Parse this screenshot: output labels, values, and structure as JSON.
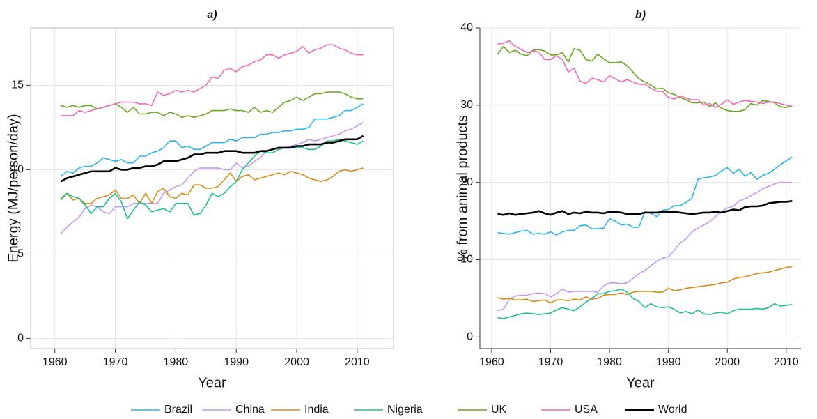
{
  "chart_data": [
    {
      "type": "line",
      "title": "a)",
      "x_label": "Year",
      "y_label": "Energy (MJ/person/day)",
      "x": [
        1961,
        1962,
        1963,
        1964,
        1965,
        1966,
        1967,
        1968,
        1969,
        1970,
        1971,
        1972,
        1973,
        1974,
        1975,
        1976,
        1977,
        1978,
        1979,
        1980,
        1981,
        1982,
        1983,
        1984,
        1985,
        1986,
        1987,
        1988,
        1989,
        1990,
        1991,
        1992,
        1993,
        1994,
        1995,
        1996,
        1997,
        1998,
        1999,
        2000,
        2001,
        2002,
        2003,
        2004,
        2005,
        2006,
        2007,
        2008,
        2009,
        2010,
        2011
      ],
      "xlim": [
        1956,
        2016
      ],
      "xticks": [
        1960,
        1970,
        1980,
        1990,
        2000,
        2010
      ],
      "ylim": [
        -0.6,
        18.4
      ],
      "yticks": [
        0,
        5,
        10,
        15
      ],
      "grid": true,
      "legend": "bottom",
      "series": [
        {
          "name": "Brazil",
          "color": "#29b5e8",
          "values": [
            9.6,
            9.9,
            9.8,
            10.1,
            10.2,
            10.2,
            10.4,
            10.7,
            10.6,
            10.5,
            10.6,
            10.4,
            10.4,
            10.8,
            10.8,
            11.0,
            11.1,
            11.3,
            11.7,
            11.7,
            11.3,
            11.4,
            11.2,
            11.2,
            11.4,
            11.6,
            11.6,
            11.6,
            11.8,
            11.7,
            11.9,
            11.9,
            11.9,
            12.1,
            12.1,
            12.2,
            12.2,
            12.3,
            12.3,
            12.4,
            12.4,
            12.5,
            13.0,
            13.0,
            13.0,
            13.1,
            13.2,
            13.5,
            13.5,
            13.7,
            13.9
          ]
        },
        {
          "name": "China",
          "color": "#c59bf2",
          "values": [
            6.2,
            6.6,
            6.9,
            7.2,
            7.7,
            7.9,
            7.8,
            7.5,
            7.4,
            7.8,
            7.8,
            7.8,
            8.0,
            8.0,
            8.0,
            8.0,
            8.0,
            8.6,
            8.8,
            9.0,
            9.1,
            9.5,
            9.9,
            10.1,
            10.1,
            10.1,
            10.1,
            10.0,
            10.0,
            10.4,
            10.1,
            10.2,
            10.5,
            10.7,
            11.1,
            11.2,
            11.3,
            11.3,
            11.4,
            11.5,
            11.6,
            11.8,
            11.7,
            11.8,
            11.9,
            12.0,
            12.1,
            12.3,
            12.4,
            12.6,
            12.8
          ]
        },
        {
          "name": "India",
          "color": "#d88c1a",
          "values": [
            8.3,
            8.6,
            8.2,
            8.3,
            8.0,
            8.0,
            8.3,
            8.4,
            8.5,
            8.8,
            8.3,
            8.3,
            8.5,
            8.0,
            8.6,
            8.0,
            8.7,
            8.9,
            8.4,
            8.3,
            8.6,
            8.5,
            9.1,
            9.1,
            8.9,
            8.9,
            9.0,
            9.4,
            9.8,
            9.3,
            9.6,
            9.7,
            9.4,
            9.5,
            9.6,
            9.7,
            9.8,
            9.7,
            9.9,
            9.8,
            9.7,
            9.5,
            9.4,
            9.3,
            9.4,
            9.6,
            9.9,
            10.0,
            9.9,
            10.0,
            10.1
          ]
        },
        {
          "name": "Nigeria",
          "color": "#1cbf8f",
          "values": [
            8.2,
            8.6,
            8.4,
            8.3,
            7.9,
            7.4,
            7.8,
            7.8,
            8.3,
            8.6,
            8.1,
            7.1,
            7.6,
            8.1,
            7.9,
            7.5,
            7.6,
            7.7,
            7.5,
            8.0,
            8.0,
            8.0,
            7.3,
            7.4,
            7.9,
            8.6,
            8.4,
            8.6,
            9.0,
            9.3,
            10.0,
            10.4,
            10.8,
            11.1,
            11.0,
            11.0,
            11.2,
            11.3,
            11.3,
            11.3,
            11.3,
            11.2,
            11.2,
            11.4,
            11.7,
            11.7,
            11.8,
            11.7,
            11.6,
            11.5,
            11.7
          ]
        },
        {
          "name": "UK",
          "color": "#6aa51e",
          "values": [
            13.8,
            13.7,
            13.8,
            13.7,
            13.8,
            13.8,
            13.6,
            13.7,
            13.8,
            13.9,
            13.7,
            13.4,
            13.7,
            13.3,
            13.3,
            13.4,
            13.4,
            13.2,
            13.4,
            13.3,
            13.1,
            13.2,
            13.1,
            13.2,
            13.3,
            13.5,
            13.5,
            13.5,
            13.6,
            13.5,
            13.5,
            13.4,
            13.7,
            13.4,
            13.5,
            13.4,
            13.7,
            14.0,
            14.1,
            14.3,
            14.1,
            14.3,
            14.5,
            14.5,
            14.6,
            14.6,
            14.6,
            14.5,
            14.3,
            14.2,
            14.2
          ]
        },
        {
          "name": "USA",
          "color": "#f06bb5",
          "values": [
            13.2,
            13.2,
            13.2,
            13.5,
            13.4,
            13.5,
            13.6,
            13.7,
            13.8,
            13.9,
            14.0,
            14.0,
            14.0,
            13.9,
            13.9,
            13.8,
            14.6,
            14.4,
            14.5,
            14.7,
            14.6,
            14.7,
            14.6,
            14.8,
            15.0,
            15.5,
            15.4,
            15.9,
            16.0,
            15.8,
            16.1,
            16.2,
            16.4,
            16.5,
            16.8,
            16.8,
            16.6,
            16.8,
            16.9,
            17.0,
            17.3,
            16.9,
            17.1,
            17.2,
            17.4,
            17.4,
            17.2,
            17.1,
            16.9,
            16.8,
            16.8
          ]
        },
        {
          "name": "World",
          "color": "#000000",
          "values": [
            9.3,
            9.5,
            9.6,
            9.7,
            9.8,
            9.9,
            9.9,
            9.9,
            9.9,
            10.1,
            10.0,
            10.0,
            10.1,
            10.1,
            10.2,
            10.2,
            10.3,
            10.5,
            10.5,
            10.5,
            10.6,
            10.7,
            10.9,
            10.9,
            11.0,
            11.0,
            11.0,
            11.1,
            11.1,
            11.1,
            11.0,
            11.0,
            11.0,
            11.1,
            11.1,
            11.2,
            11.3,
            11.3,
            11.3,
            11.4,
            11.4,
            11.5,
            11.5,
            11.5,
            11.6,
            11.6,
            11.7,
            11.8,
            11.8,
            11.8,
            12.0
          ]
        }
      ]
    },
    {
      "type": "line",
      "title": "b)",
      "x_label": "Year",
      "y_label": "% from animal products",
      "x": [
        1961,
        1962,
        1963,
        1964,
        1965,
        1966,
        1967,
        1968,
        1969,
        1970,
        1971,
        1972,
        1973,
        1974,
        1975,
        1976,
        1977,
        1978,
        1979,
        1980,
        1981,
        1982,
        1983,
        1984,
        1985,
        1986,
        1987,
        1988,
        1989,
        1990,
        1991,
        1992,
        1993,
        1994,
        1995,
        1996,
        1997,
        1998,
        1999,
        2000,
        2001,
        2002,
        2003,
        2004,
        2005,
        2006,
        2007,
        2008,
        2009,
        2010,
        2011
      ],
      "xlim": [
        1958,
        2012.5
      ],
      "xticks": [
        1960,
        1970,
        1980,
        1990,
        2000,
        2010
      ],
      "ylim": [
        -1.5,
        40
      ],
      "yticks": [
        0,
        10,
        20,
        30,
        40
      ],
      "grid": true,
      "series": [
        {
          "color": "#29b5e8",
          "values": [
            13.5,
            13.4,
            13.3,
            13.5,
            13.7,
            13.8,
            13.3,
            13.4,
            13.3,
            13.6,
            13.2,
            13.6,
            13.8,
            13.8,
            14.4,
            14.5,
            14.0,
            14.0,
            14.1,
            15.3,
            15.0,
            14.5,
            14.6,
            14.2,
            14.2,
            16.2,
            16.0,
            15.6,
            16.4,
            16.5,
            17.0,
            17.0,
            17.4,
            18.0,
            20.4,
            20.6,
            20.7,
            20.9,
            21.5,
            21.9,
            21.2,
            21.7,
            20.8,
            21.3,
            20.4,
            20.9,
            21.2,
            21.7,
            22.3,
            22.8,
            23.3
          ]
        },
        {
          "color": "#c59bf2",
          "values": [
            3.4,
            3.6,
            4.9,
            5.3,
            5.4,
            5.4,
            5.6,
            5.7,
            5.6,
            5.2,
            5.6,
            6.2,
            5.8,
            5.9,
            5.9,
            5.9,
            5.9,
            5.8,
            6.6,
            7.0,
            7.0,
            6.9,
            7.0,
            7.6,
            8.2,
            8.6,
            9.2,
            9.8,
            10.2,
            10.4,
            11.2,
            12.2,
            12.7,
            13.6,
            14.1,
            14.5,
            14.9,
            15.6,
            16.2,
            16.7,
            16.9,
            17.6,
            17.9,
            18.3,
            18.7,
            19.2,
            19.5,
            19.8,
            20.0,
            20.0,
            20.0
          ]
        },
        {
          "color": "#d88c1a",
          "values": [
            5.1,
            4.9,
            5.0,
            4.8,
            4.8,
            4.9,
            4.6,
            4.7,
            4.8,
            4.4,
            4.8,
            4.8,
            4.7,
            4.9,
            4.8,
            5.2,
            4.9,
            5.0,
            5.4,
            5.5,
            5.5,
            5.7,
            5.5,
            5.8,
            5.9,
            5.9,
            5.9,
            5.8,
            5.8,
            6.3,
            6.0,
            6.1,
            6.3,
            6.4,
            6.5,
            6.6,
            6.7,
            6.8,
            7.0,
            7.1,
            7.5,
            7.7,
            7.8,
            8.0,
            8.2,
            8.3,
            8.4,
            8.6,
            8.8,
            9.0,
            9.1
          ]
        },
        {
          "color": "#1cbf8f",
          "values": [
            2.5,
            2.4,
            2.6,
            2.8,
            3.0,
            3.1,
            3.0,
            2.9,
            3.0,
            3.1,
            3.5,
            3.8,
            3.6,
            3.4,
            3.9,
            4.5,
            5.0,
            5.6,
            5.6,
            5.9,
            6.0,
            6.2,
            5.8,
            5.0,
            4.6,
            3.8,
            4.3,
            3.9,
            3.8,
            3.9,
            3.6,
            3.1,
            3.3,
            3.0,
            3.5,
            3.0,
            2.9,
            3.1,
            3.2,
            3.0,
            3.4,
            3.6,
            3.6,
            3.6,
            3.7,
            3.6,
            3.8,
            4.3,
            4.0,
            4.1,
            4.2
          ]
        },
        {
          "color": "#6aa51e",
          "values": [
            36.6,
            37.6,
            36.8,
            37.1,
            36.6,
            36.4,
            37.1,
            37.2,
            37.0,
            36.5,
            36.5,
            36.8,
            35.6,
            37.3,
            37.1,
            35.9,
            35.7,
            36.6,
            36.0,
            35.5,
            35.5,
            35.6,
            35.1,
            34.3,
            33.4,
            33.0,
            32.6,
            32.1,
            32.2,
            31.6,
            31.4,
            31.0,
            30.7,
            30.3,
            30.3,
            30.4,
            29.8,
            30.3,
            29.6,
            29.3,
            29.2,
            29.2,
            29.4,
            30.2,
            30.0,
            30.6,
            30.5,
            30.3,
            29.8,
            29.7,
            29.9
          ]
        },
        {
          "color": "#f06bb5",
          "values": [
            37.9,
            38.0,
            38.3,
            37.6,
            37.2,
            36.8,
            37.0,
            36.9,
            35.9,
            35.9,
            36.4,
            35.9,
            34.3,
            34.8,
            33.1,
            32.8,
            33.5,
            33.3,
            33.0,
            33.8,
            33.4,
            33.0,
            33.3,
            33.0,
            32.7,
            32.7,
            32.2,
            31.8,
            31.8,
            31.0,
            30.8,
            31.2,
            30.9,
            30.7,
            30.7,
            30.0,
            30.2,
            29.7,
            30.1,
            30.7,
            30.1,
            30.4,
            30.6,
            30.5,
            30.4,
            30.2,
            30.4,
            30.4,
            30.2,
            30.0,
            29.8
          ]
        },
        {
          "color": "#000000",
          "values": [
            15.9,
            15.8,
            16.0,
            15.8,
            15.9,
            16.0,
            16.1,
            16.3,
            16.0,
            15.8,
            16.1,
            16.3,
            15.9,
            16.1,
            16.0,
            16.2,
            16.1,
            16.1,
            16.0,
            16.2,
            16.2,
            16.1,
            15.9,
            15.9,
            15.9,
            16.1,
            16.1,
            16.1,
            16.2,
            16.2,
            16.2,
            16.1,
            16.0,
            15.9,
            16.0,
            16.1,
            16.1,
            16.2,
            16.1,
            16.3,
            16.5,
            16.4,
            16.8,
            16.9,
            16.9,
            17.0,
            17.3,
            17.4,
            17.5,
            17.5,
            17.6
          ]
        }
      ]
    }
  ]
}
